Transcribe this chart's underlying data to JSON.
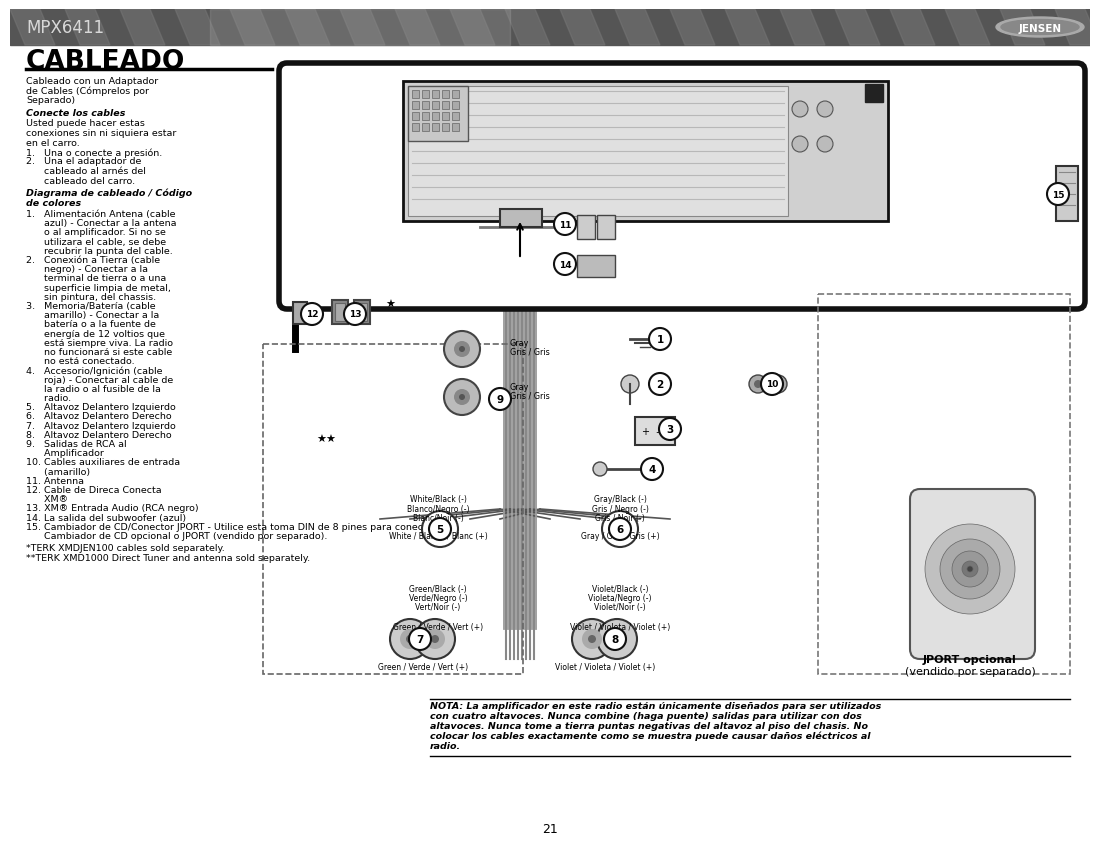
{
  "page_bg": "#ffffff",
  "header_bg": "#555555",
  "header_text": "MPX6411",
  "header_text_color": "#e0e0e0",
  "title": "CABLEADO",
  "body_text_color": "#000000",
  "page_number": "21",
  "left_col_text": [
    "Cableado con un Adaptador",
    "de Cables (Cómprelos por",
    "Separado)"
  ],
  "conecte_header": "Conecte los cables",
  "conecte_body": [
    "Usted puede hacer estas",
    "conexiones sin ni siquiera estar",
    "en el carro.",
    "1.   Una o conecte a presión.",
    "2.   Una el adaptador de",
    "      cableado al arnés del",
    "      cableado del carro."
  ],
  "diagrama_header": "Diagrama de cableado / Código",
  "diagrama_header2": "de colores",
  "diagrama_items": [
    "1.   Alimentación Antena (cable",
    "      azul) - Conectar a la antena",
    "      o al amplificador. Si no se",
    "      utilizara el cable, se debe",
    "      recubrir la punta del cable.",
    "2.   Conexión a Tierra (cable",
    "      negro) - Conectar a la",
    "      terminal de tierra o a una",
    "      superficie limpia de metal,",
    "      sin pintura, del chassis.",
    "3.   Memoria/Batería (cable",
    "      amarillo) - Conectar a la",
    "      batería o a la fuente de",
    "      energía de 12 voltios que",
    "      está siempre viva. La radio",
    "      no funcionará si este cable",
    "      no está conectado.",
    "4.   Accesorio/Ignición (cable",
    "      roja) - Conectar al cable de",
    "      la radio o al fusible de la",
    "      radio.",
    "5.   Altavoz Delantero Izquierdo",
    "6.   Altavoz Delantero Derecho",
    "7.   Altavoz Delantero Izquierdo",
    "8.   Altavoz Delantero Derecho",
    "9.   Salidas de RCA al",
    "      Amplificador",
    "10. Cables auxiliares de entrada",
    "      (amarillo)",
    "11. Antenna",
    "12. Cable de Direca Conecta",
    "      XM®",
    "13. XM® Entrada Audio (RCA negro)",
    "14. La salida del subwoofer (azul)",
    "15. Cambiador de CD/Conector JPORT - Utilice esta toma DIN de 8 pines para conectar un",
    "      Cambiador de CD opcional o JPORT (vendido por separado)."
  ],
  "footnotes": [
    "*TERK XMDJEN100 cables sold separately.",
    "**TERK XMD1000 Direct Tuner and antenna sold separately."
  ],
  "nota_text_lines": [
    "NOTA: La amplificador en este radio están únicamente diseñados para ser utilizados",
    "con cuatro altavoces. Nunca combine (haga puente) salidas para utilizar con dos",
    "altavoces. Nunca tome a tierra puntas negativas del altavoz al piso del chasis. No",
    "colocar los cables exactamente como se muestra puede causar daños eléctricos al",
    "radio."
  ],
  "jport_text1": "JPORT opcional",
  "jport_text2": "(vendido por separado)",
  "wire_labels_left_neg": [
    "White/Black (-)",
    "Blanco/Negro (-)",
    "Blanc/Noir (-)"
  ],
  "wire_label_left_pos": "White / Blanco / Blanc (+)",
  "wire_labels_left_neg2": [
    "Green/Black (-)",
    "Verde/Negro (-)",
    "Vert/Noir (-)"
  ],
  "wire_label_left_pos2": "Green / Verde / Vert (+)",
  "wire_labels_right_neg": [
    "Gray/Black (-)",
    "Gris / Negro (-)",
    "Gris / Noir (-)"
  ],
  "wire_label_right_pos": "Gray / Gris / Gris (+)",
  "wire_labels_right_neg2": [
    "Violet/Black (-)",
    "Violeta/Negro (-)",
    "Violet/Noir (-)"
  ],
  "wire_label_right_pos2": "Violet / Violeta / Violet (+)"
}
